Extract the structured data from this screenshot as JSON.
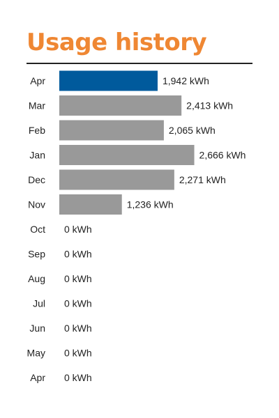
{
  "colors": {
    "title": "#ef8733",
    "highlight_bar": "#005a9c",
    "bar": "#999999",
    "rule": "#222222",
    "text": "#222222"
  },
  "chart_data": {
    "type": "bar",
    "orientation": "horizontal",
    "title": "Usage history",
    "unit": "kWh",
    "highlight_index": 0,
    "grid": false,
    "legend": "none",
    "xlim": [
      0,
      2700
    ],
    "categories": [
      "Apr",
      "Mar",
      "Feb",
      "Jan",
      "Dec",
      "Nov",
      "Oct",
      "Sep",
      "Aug",
      "Jul",
      "Jun",
      "May",
      "Apr"
    ],
    "values": [
      1942,
      2413,
      2065,
      2666,
      2271,
      1236,
      0,
      0,
      0,
      0,
      0,
      0,
      0
    ],
    "value_labels": [
      "1,942 kWh",
      "2,413 kWh",
      "2,065 kWh",
      "2,666 kWh",
      "2,271 kWh",
      "1,236 kWh",
      "0 kWh",
      "0 kWh",
      "0 kWh",
      "0 kWh",
      "0 kWh",
      "0 kWh",
      "0 kWh"
    ]
  }
}
